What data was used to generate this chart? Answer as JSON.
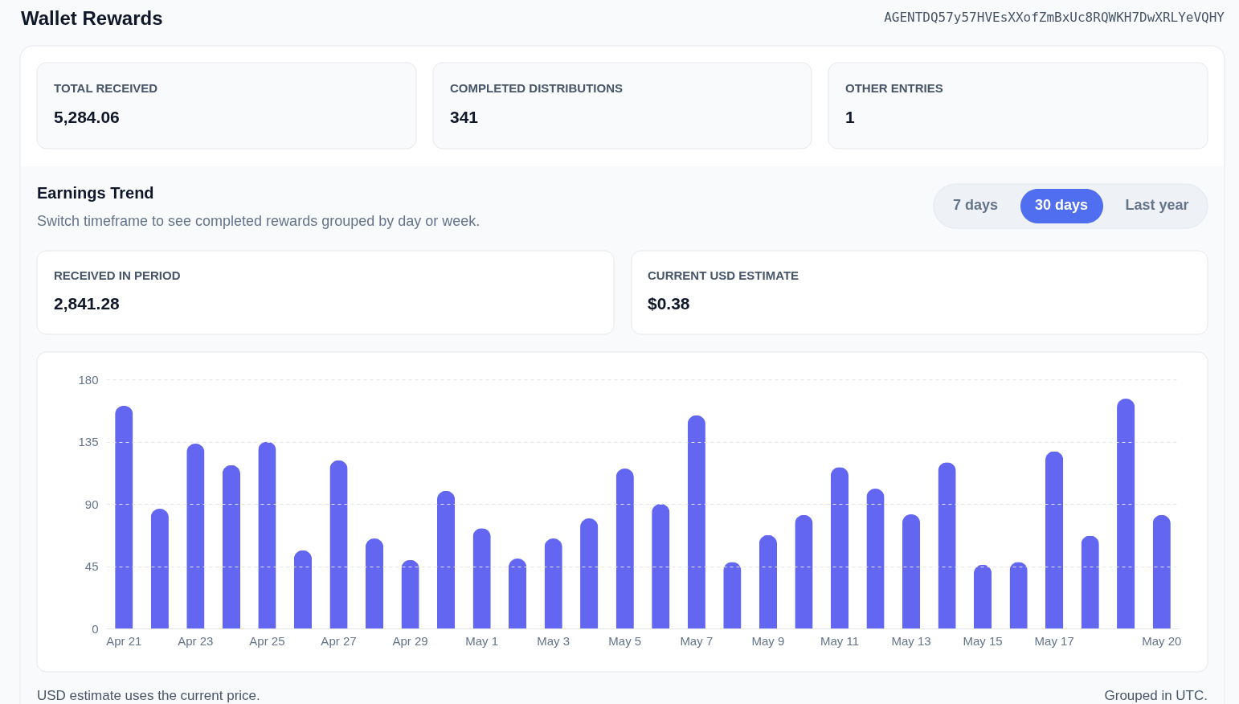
{
  "chart_data": {
    "type": "bar",
    "title": "Wallet Rewards",
    "subtitle": "Earnings Trend",
    "categories": [
      "Apr 21",
      null,
      "Apr 23",
      null,
      "Apr 25",
      null,
      "Apr 27",
      null,
      "Apr 29",
      null,
      "May 1",
      null,
      "May 3",
      null,
      "May 5",
      null,
      "May 7",
      null,
      "May 9",
      null,
      "May 11",
      null,
      "May 13",
      null,
      "May 15",
      null,
      "May 17",
      null,
      null,
      "May 20"
    ],
    "values": [
      161,
      86.5,
      133.5,
      118,
      135,
      56.5,
      121.5,
      65,
      49.5,
      99.5,
      72.5,
      50.5,
      65,
      79.5,
      115.5,
      90,
      154,
      48,
      67.5,
      82,
      116.5,
      101,
      82.5,
      120,
      46,
      48,
      128,
      67,
      166,
      82
    ],
    "color": "#6366f1",
    "ylim": [
      0,
      180
    ],
    "yticks": [
      0,
      45,
      90,
      135,
      180
    ],
    "grid": "y",
    "annotations": [
      "AGENTDQ57y57HVEsXXofZmBxUc8RQWKH7DwXRLYeVQHY",
      "TOTAL RECEIVED",
      "5,284.06",
      "COMPLETED DISTRIBUTIONS",
      "341",
      "OTHER ENTRIES",
      "1",
      "Switch timeframe to see completed rewards grouped by day or week.",
      "7 days",
      "30 days",
      "Last year",
      "RECEIVED IN PERIOD",
      "2,841.28",
      "CURRENT USD ESTIMATE",
      "$0.38",
      "USD estimate uses the current price.",
      "Grouped in UTC."
    ]
  }
}
